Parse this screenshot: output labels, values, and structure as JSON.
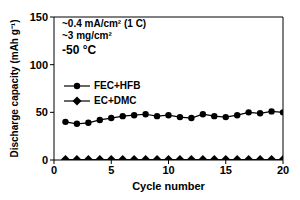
{
  "chart_data": {
    "type": "line",
    "x_label": "Cycle number",
    "y_label": "Discharge capacity (mAh g⁻¹)",
    "annotations": [
      "~0.4 mA/cm² (1 C)",
      "~3 mg/cm²",
      "-50 °C"
    ],
    "x": [
      1,
      2,
      3,
      4,
      5,
      6,
      7,
      8,
      9,
      10,
      11,
      12,
      13,
      14,
      15,
      16,
      17,
      18,
      19,
      20
    ],
    "series": [
      {
        "name": "FEC+HFB",
        "color": "#000000",
        "marker": "circle",
        "line_style": "solid",
        "values": [
          40,
          38,
          39,
          42,
          44,
          46,
          47,
          48,
          46,
          47,
          45,
          44,
          48,
          46,
          45,
          47,
          50,
          49,
          51,
          50
        ]
      },
      {
        "name": "EC+DMC",
        "color": "#000000",
        "marker": "diamond",
        "line_style": "solid",
        "values": [
          0.5,
          0.5,
          0.5,
          0.5,
          0.5,
          0.5,
          0.5,
          0.5,
          0.5,
          0.5,
          0.5,
          0.5,
          0.5,
          0.5,
          0.5,
          0.5,
          0.5,
          0.5,
          0.5,
          0.5
        ]
      }
    ],
    "xlim": [
      0,
      20
    ],
    "xticks": [
      0,
      5,
      10,
      15,
      20
    ],
    "ylim": [
      0,
      150
    ],
    "yticks": [
      0,
      50,
      100,
      150
    ],
    "legend": "left"
  }
}
